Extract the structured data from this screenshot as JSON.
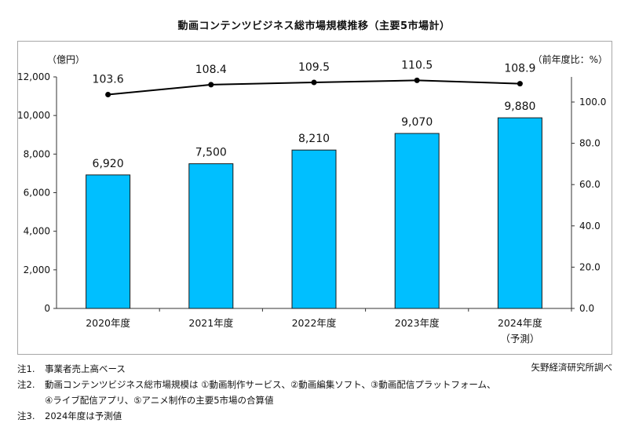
{
  "title": "動画コンテンツビジネス総市場規模推移（主要5市場計）",
  "chart_data": {
    "type": "bar",
    "categories": [
      "2020年度",
      "2021年度",
      "2022年度",
      "2023年度",
      "2024年度"
    ],
    "category_sublabels": [
      "",
      "",
      "",
      "",
      "（予測）"
    ],
    "series": [
      {
        "kind": "bar",
        "axis": "left",
        "values": [
          6920,
          7500,
          8210,
          9070,
          9880
        ],
        "data_labels": [
          "6,920",
          "7,500",
          "8,210",
          "9,070",
          "9,880"
        ]
      },
      {
        "kind": "line",
        "axis": "right",
        "values": [
          103.6,
          108.4,
          109.5,
          110.5,
          108.9
        ],
        "data_labels": [
          "103.6",
          "108.4",
          "109.5",
          "110.5",
          "108.9"
        ]
      }
    ],
    "y_left": {
      "unit_label": "（億円）",
      "ylim": [
        0,
        12000
      ],
      "ticks": [
        "0",
        "2,000",
        "4,000",
        "6,000",
        "8,000",
        "10,000",
        "12,000"
      ]
    },
    "y_right": {
      "unit_label": "（前年度比：%）",
      "ylim": [
        0,
        100
      ],
      "ticks": [
        "0.0",
        "20.0",
        "40.0",
        "60.0",
        "80.0",
        "100.0"
      ]
    },
    "grid": false,
    "colors": {
      "bar": "#00bfff",
      "bar_edge": "#1a1a1a",
      "line": "#000000"
    }
  },
  "notes": {
    "n1_key": "注1.",
    "n1_text": "事業者売上高ベース",
    "n2_key": "注2.",
    "n2_text": "動画コンテンツビジネス総市場規模は ①動画制作サービス、②動画編集ソフト、③動画配信プラットフォーム、",
    "n2_text2": "④ライブ配信アプリ、⑤アニメ制作の主要5市場の合算値",
    "n3_key": "注3.",
    "n3_text": "2024年度は予測値",
    "source": "矢野経済研究所調べ"
  }
}
